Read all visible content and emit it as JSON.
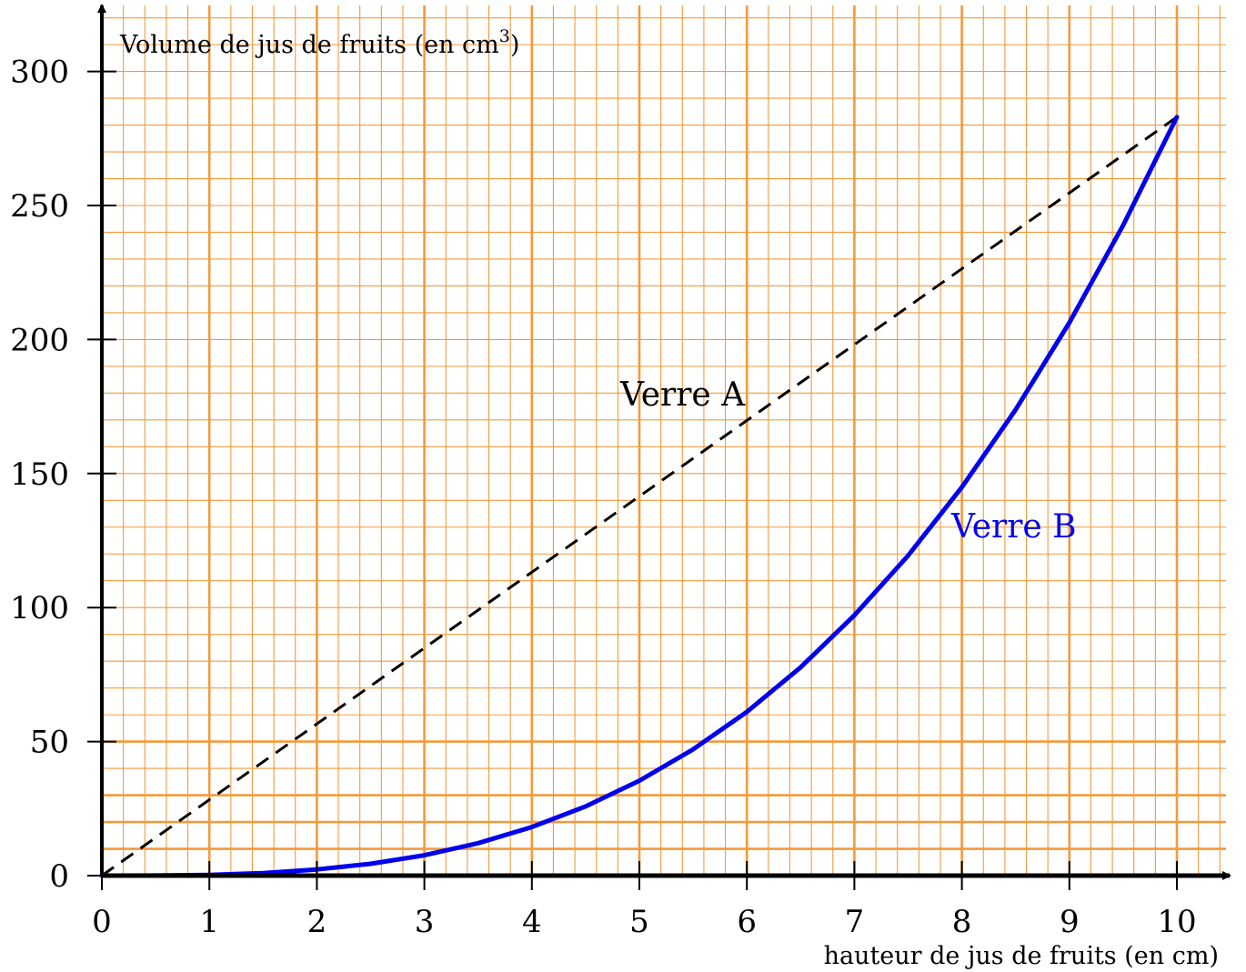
{
  "chart_data": {
    "type": "line",
    "ylabel": "Volume de jus de fruits (en cm",
    "ylabel_sup": "3",
    "ylabel_close": ")",
    "xlabel": "hauteur de jus de fruits (en cm)",
    "xlim": [
      0,
      10.5
    ],
    "ylim": [
      0,
      320
    ],
    "x_ticks": [
      "0",
      "1",
      "2",
      "3",
      "4",
      "5",
      "6",
      "7",
      "8",
      "9",
      "10"
    ],
    "y_ticks": [
      "0",
      "50",
      "100",
      "150",
      "200",
      "250",
      "300"
    ],
    "grid": true,
    "colors": {
      "grid": "#f39a3c",
      "axis": "#000000",
      "seriesA": "#000000",
      "seriesB": "#0000ee"
    },
    "series": [
      {
        "name": "Verre A",
        "style": "dashed",
        "x": [
          0,
          10
        ],
        "y": [
          0,
          283
        ]
      },
      {
        "name": "Verre B",
        "style": "solid",
        "x": [
          0,
          0.5,
          1,
          1.5,
          2,
          2.5,
          3,
          3.5,
          4,
          4.5,
          5,
          5.5,
          6,
          6.5,
          7,
          7.5,
          8,
          8.5,
          9,
          9.5,
          10
        ],
        "y": [
          0,
          0.04,
          0.28,
          0.96,
          2.3,
          4.4,
          7.6,
          12.1,
          18.1,
          25.8,
          35.4,
          47.1,
          61.1,
          77.7,
          97.1,
          119.4,
          144.9,
          173.8,
          206.3,
          242.6,
          283
        ]
      }
    ]
  }
}
